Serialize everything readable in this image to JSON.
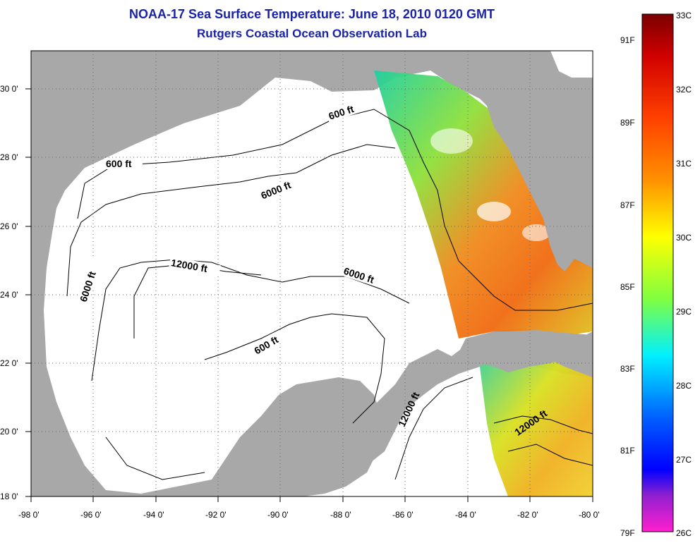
{
  "title": "NOAA-17 Sea Surface Temperature:  June 18, 2010 0120 GMT",
  "subtitle": "Rutgers Coastal Ocean Observation Lab",
  "lat_labels": [
    "30 0'",
    "28 0'",
    "26 0'",
    "24 0'",
    "22 0'",
    "20 0'",
    "18 0'"
  ],
  "lon_labels": [
    "-98 0'",
    "-96 0'",
    "-94 0'",
    "-92 0'",
    "-90 0'",
    "-88 0'",
    "-86 0'",
    "-84 0'",
    "-82 0'",
    "-80 0'"
  ],
  "map_extent": {
    "lon_min": -98,
    "lon_max": -80,
    "lat_min": 18,
    "lat_max": 31
  },
  "contour_labels": [
    "600 ft",
    "600 ft",
    "6000 ft",
    "6000 ft",
    "12000 ft",
    "6000 ft",
    "600 ft",
    "12000 ft",
    "12000 ft"
  ],
  "colorbar": {
    "celsius": [
      "33C",
      "32C",
      "31C",
      "30C",
      "29C",
      "28C",
      "27C",
      "26C"
    ],
    "fahrenheit": [
      "91F",
      "89F",
      "87F",
      "85F",
      "83F",
      "81F",
      "79F"
    ],
    "range_c": [
      26,
      33
    ]
  },
  "colors": {
    "title": "#1a23a8",
    "land": "#a8a8a8",
    "water": "#ffffff"
  }
}
